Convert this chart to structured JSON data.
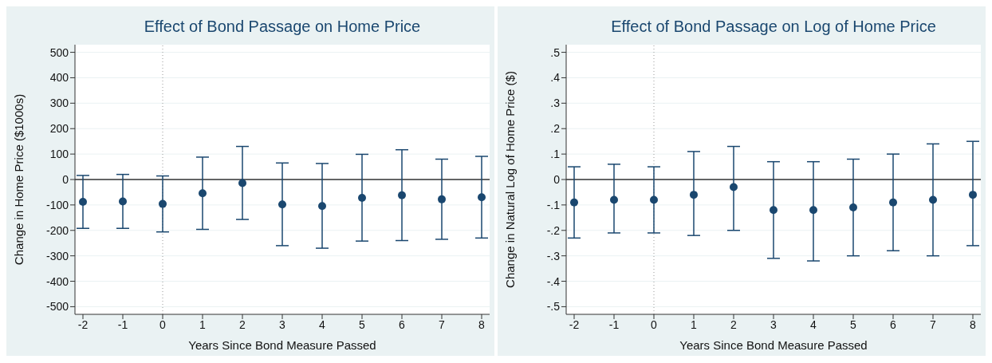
{
  "chart_data": [
    {
      "type": "scatter",
      "title": "Effect of Bond Passage on Home Price",
      "xlabel": "Years Since Bond Measure Passed",
      "ylabel": "Change in Home Price ($1000s)",
      "x": [
        -2,
        -1,
        0,
        1,
        2,
        3,
        4,
        5,
        6,
        7,
        8
      ],
      "series": [
        {
          "color": "#1a476f",
          "values": [
            -88,
            -86,
            -96,
            -54,
            -14,
            -98,
            -104,
            -72,
            -62,
            -78,
            -70
          ],
          "errors": [
            [
              -192,
              16
            ],
            [
              -192,
              20
            ],
            [
              -206,
              14
            ],
            [
              -196,
              88
            ],
            [
              -157,
              130
            ],
            [
              -260,
              65
            ],
            [
              -270,
              63
            ],
            [
              -242,
              99
            ],
            [
              -240,
              117
            ],
            [
              -235,
              80
            ],
            [
              -230,
              91
            ]
          ]
        }
      ],
      "xlim": [
        -2.2,
        8.2
      ],
      "xticks": [
        -2,
        -1,
        0,
        1,
        2,
        3,
        4,
        5,
        6,
        7,
        8
      ],
      "ylim": [
        -530,
        530
      ],
      "yticks": [
        -500,
        -400,
        -300,
        -200,
        -100,
        0,
        100,
        200,
        300,
        400,
        500
      ],
      "ref_lines": [
        {
          "axis": "y",
          "value": 0,
          "color": "#333333",
          "line_style": "solid"
        },
        {
          "axis": "x",
          "value": 0,
          "color": "#999999",
          "line_style": "dotted"
        }
      ],
      "grid": "y",
      "legend": false,
      "marker": "circle"
    },
    {
      "type": "scatter",
      "title": "Effect of Bond Passage on Log of Home Price",
      "xlabel": "Years Since Bond Measure Passed",
      "ylabel": "Change in Natural Log of Home Price ($)",
      "x": [
        -2,
        -1,
        0,
        1,
        2,
        3,
        4,
        5,
        6,
        7,
        8
      ],
      "series": [
        {
          "color": "#1a476f",
          "values": [
            -0.09,
            -0.08,
            -0.08,
            -0.06,
            -0.03,
            -0.12,
            -0.12,
            -0.11,
            -0.09,
            -0.08,
            -0.06
          ],
          "errors": [
            [
              -0.23,
              0.05
            ],
            [
              -0.21,
              0.06
            ],
            [
              -0.21,
              0.05
            ],
            [
              -0.22,
              0.11
            ],
            [
              -0.2,
              0.13
            ],
            [
              -0.31,
              0.07
            ],
            [
              -0.32,
              0.07
            ],
            [
              -0.3,
              0.08
            ],
            [
              -0.28,
              0.1
            ],
            [
              -0.3,
              0.14
            ],
            [
              -0.26,
              0.15
            ]
          ]
        }
      ],
      "xlim": [
        -2.2,
        8.2
      ],
      "xticks": [
        -2,
        -1,
        0,
        1,
        2,
        3,
        4,
        5,
        6,
        7,
        8
      ],
      "ylim": [
        -0.53,
        0.53
      ],
      "yticks": [
        {
          "value": -0.5,
          "label": "-.5"
        },
        {
          "value": -0.4,
          "label": "-.4"
        },
        {
          "value": -0.3,
          "label": "-.3"
        },
        {
          "value": -0.2,
          "label": "-.2"
        },
        {
          "value": -0.1,
          "label": "-.1"
        },
        0,
        {
          "value": 0.1,
          "label": ".1"
        },
        {
          "value": 0.2,
          "label": ".2"
        },
        {
          "value": 0.3,
          "label": ".3"
        },
        {
          "value": 0.4,
          "label": ".4"
        },
        {
          "value": 0.5,
          "label": ".5"
        }
      ],
      "ref_lines": [
        {
          "axis": "y",
          "value": 0,
          "color": "#333333",
          "line_style": "solid"
        },
        {
          "axis": "x",
          "value": 0,
          "color": "#999999",
          "line_style": "dotted"
        }
      ],
      "grid": "y",
      "legend": false,
      "marker": "circle"
    }
  ]
}
